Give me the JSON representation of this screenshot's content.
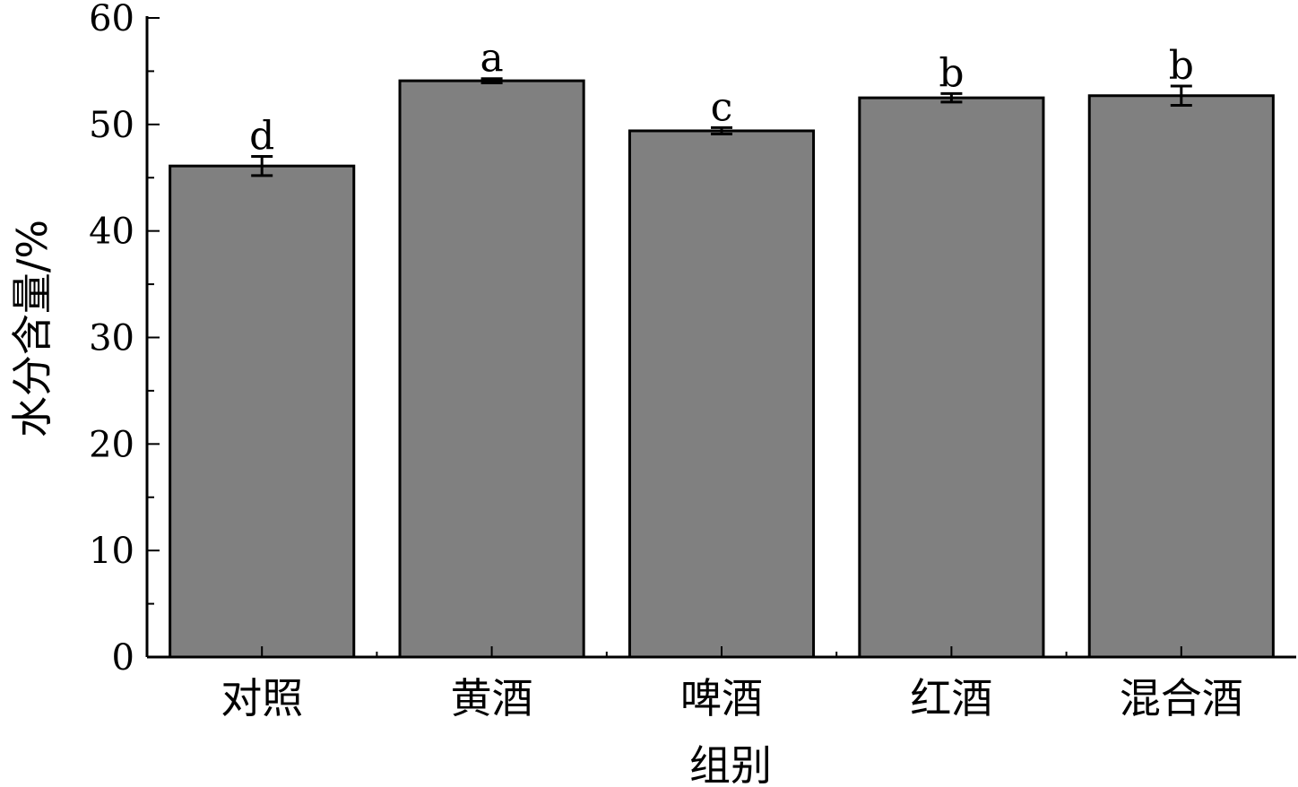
{
  "chart_data": {
    "type": "bar",
    "title": "",
    "xlabel": "组别",
    "ylabel": "水分含量/%",
    "ylim": [
      0,
      60
    ],
    "yticks": [
      0,
      10,
      20,
      30,
      40,
      50,
      60
    ],
    "categories": [
      "对照",
      "黄酒",
      "啤酒",
      "红酒",
      "混合酒"
    ],
    "values": [
      46.1,
      54.1,
      49.4,
      52.5,
      52.7
    ],
    "errors": [
      0.9,
      0.2,
      0.3,
      0.4,
      0.9
    ],
    "significance": [
      "d",
      "a",
      "c",
      "b",
      "b"
    ],
    "bar_color": "#808080",
    "grid": false
  }
}
